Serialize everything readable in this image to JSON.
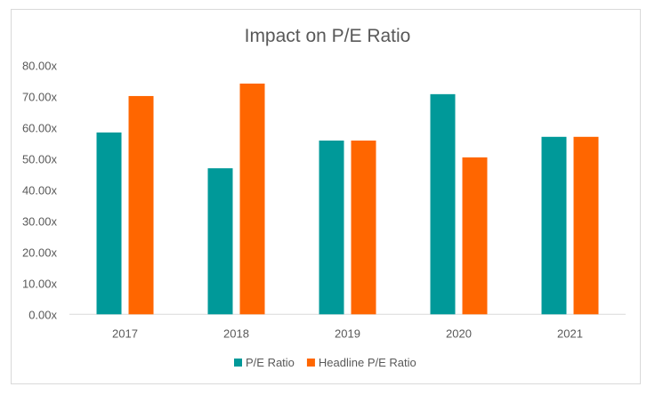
{
  "chart_data": {
    "type": "bar",
    "title": "Impact on P/E Ratio",
    "categories": [
      "2017",
      "2018",
      "2019",
      "2020",
      "2021"
    ],
    "series": [
      {
        "name": "P/E Ratio",
        "color": "#009999",
        "values": [
          58.4,
          46.9,
          55.8,
          70.7,
          57.0
        ]
      },
      {
        "name": "Headline P/E Ratio",
        "color": "#FF6600",
        "values": [
          70.1,
          74.1,
          55.8,
          50.4,
          57.0
        ]
      }
    ],
    "ylim": [
      0,
      80
    ],
    "yticks": [
      "0.00x",
      "10.00x",
      "20.00x",
      "30.00x",
      "40.00x",
      "50.00x",
      "60.00x",
      "70.00x",
      "80.00x"
    ],
    "grid": false,
    "legend": "bottom"
  }
}
